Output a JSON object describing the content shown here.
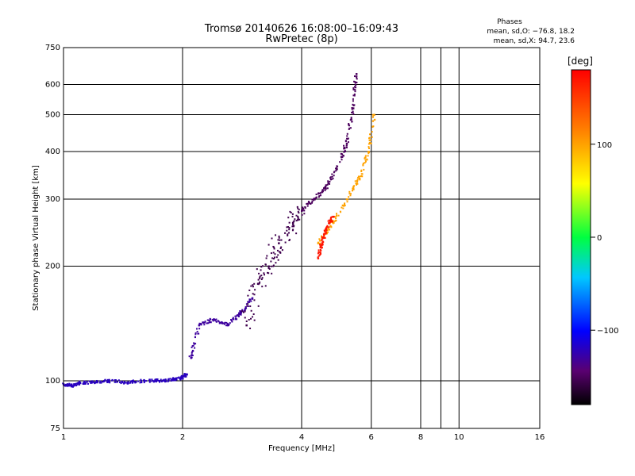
{
  "chart_data": {
    "type": "scatter",
    "title": "Tromsø 20140626 16:08:00–16:09:43",
    "subtitle": "RwPretec (8p)",
    "xlabel": "Frequency [MHz]",
    "ylabel": "Stationary phase Virtual Height [km]",
    "x_scale": "log",
    "y_scale": "log",
    "xlim": [
      1,
      16
    ],
    "ylim": [
      75,
      750
    ],
    "x_ticks": [
      1,
      2,
      4,
      6,
      8,
      10,
      16
    ],
    "y_ticks": [
      75,
      100,
      200,
      300,
      400,
      500,
      600,
      750
    ],
    "x_tick_labels": [
      "1",
      "2",
      "4",
      "6",
      "8",
      "10",
      "16"
    ],
    "y_tick_labels": [
      "75",
      "100",
      "200",
      "300",
      "400",
      "500",
      "600",
      "750"
    ],
    "grid": true,
    "stats": {
      "header": "Phases",
      "line_o": "mean, sd,O: −76.8, 18.2",
      "line_x": "mean, sd,X:  94.7, 23.6"
    },
    "colorbar": {
      "label": "[deg]",
      "range": [
        -180,
        180
      ],
      "ticks": [
        100,
        0,
        -100
      ],
      "tick_labels": [
        "100",
        "0",
        "−100"
      ]
    },
    "clusters": [
      {
        "region": "low-F trace",
        "phase_deg": -120,
        "x": [
          1.0,
          1.05,
          1.1,
          1.2,
          1.3,
          1.45,
          1.6,
          1.75,
          1.9,
          2.0,
          2.05
        ],
        "y": [
          98,
          97,
          99,
          99,
          100,
          99,
          100,
          100,
          101,
          102,
          104
        ]
      },
      {
        "region": "rising trace 2-3 MHz",
        "phase_deg": -130,
        "x": [
          2.1,
          2.2,
          2.4,
          2.6,
          2.8,
          3.0
        ],
        "y": [
          115,
          140,
          145,
          140,
          150,
          165
        ]
      },
      {
        "region": "F cloud 3-4 MHz",
        "phase_deg": -155,
        "x": [
          2.9,
          3.1,
          3.3,
          3.5,
          3.8,
          4.0
        ],
        "y": [
          140,
          180,
          200,
          230,
          260,
          280
        ]
      },
      {
        "region": "F trace 4-5.5 MHz",
        "phase_deg": -150,
        "x": [
          4.0,
          4.3,
          4.6,
          4.9,
          5.2,
          5.4,
          5.5
        ],
        "y": [
          280,
          300,
          320,
          360,
          420,
          520,
          640
        ]
      },
      {
        "region": "X-mode trace",
        "phase_deg": 100,
        "x": [
          4.4,
          4.8,
          5.2,
          5.6,
          5.9,
          6.1
        ],
        "y": [
          230,
          260,
          300,
          340,
          400,
          500
        ]
      },
      {
        "region": "X-mode red patch",
        "phase_deg": 170,
        "x": [
          4.4,
          4.5,
          4.6,
          4.8
        ],
        "y": [
          210,
          230,
          250,
          270
        ]
      }
    ]
  }
}
